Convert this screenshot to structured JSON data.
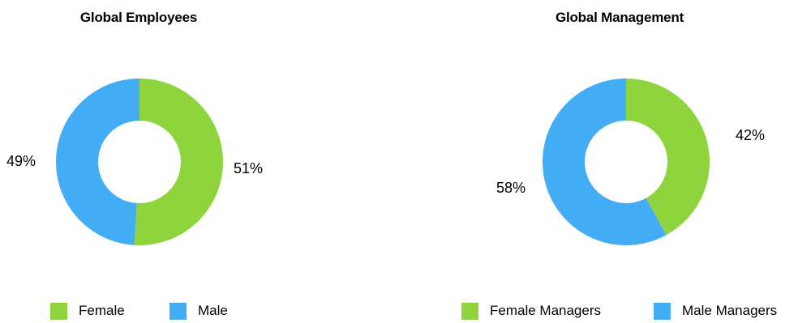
{
  "chart_data": [
    {
      "type": "pie",
      "title": "Global Employees",
      "categories": [
        "Female",
        "Male"
      ],
      "values": [
        51,
        49
      ],
      "labels": [
        "51%",
        "49%"
      ],
      "colors": [
        "#8fd43c",
        "#42adf5"
      ],
      "legend": "bottom"
    },
    {
      "type": "pie",
      "title": "Global Management",
      "categories": [
        "Female Managers",
        "Male Managers"
      ],
      "values": [
        42,
        58
      ],
      "labels": [
        "42%",
        "58%"
      ],
      "colors": [
        "#8fd43c",
        "#42adf5"
      ],
      "legend": "bottom"
    }
  ]
}
